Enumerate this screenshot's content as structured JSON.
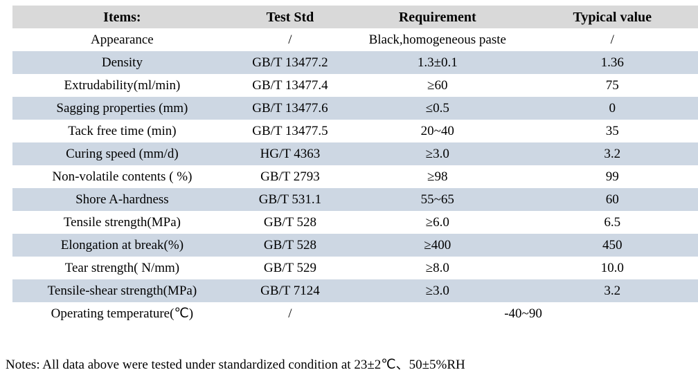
{
  "colors": {
    "header_bg": "#d9d9d9",
    "stripe_bg": "#cdd7e3",
    "row_bg": "#ffffff",
    "text": "#000000"
  },
  "table": {
    "headers": {
      "items": "Items:",
      "std": "Test Std",
      "req": "Requirement",
      "typical": "Typical value"
    },
    "rows": [
      {
        "item": "Appearance",
        "std": "/",
        "req": "Black,homogeneous paste",
        "typical": "/"
      },
      {
        "item": "Density",
        "std": "GB/T 13477.2",
        "req": "1.3±0.1",
        "typical": "1.36"
      },
      {
        "item": "Extrudability(ml/min)",
        "std": "GB/T 13477.4",
        "req": "≥60",
        "typical": "75"
      },
      {
        "item": "Sagging properties (mm)",
        "std": "GB/T 13477.6",
        "req": "≤0.5",
        "typical": "0"
      },
      {
        "item": "Tack free time (min)",
        "std": "GB/T 13477.5",
        "req": "20~40",
        "typical": "35"
      },
      {
        "item": "Curing speed (mm/d)",
        "std": "HG/T 4363",
        "req": "≥3.0",
        "typical": "3.2"
      },
      {
        "item": "Non-volatile contents ( %)",
        "std": "GB/T 2793",
        "req": "≥98",
        "typical": "99"
      },
      {
        "item": "Shore A-hardness",
        "std": "GB/T 531.1",
        "req": "55~65",
        "typical": "60"
      },
      {
        "item": "Tensile strength(MPa)",
        "std": "GB/T 528",
        "req": "≥6.0",
        "typical": "6.5"
      },
      {
        "item": "Elongation at break(%)",
        "std": "GB/T 528",
        "req": "≥400",
        "typical": "450"
      },
      {
        "item": "Tear strength( N/mm)",
        "std": "GB/T 529",
        "req": "≥8.0",
        "typical": "10.0"
      },
      {
        "item": "Tensile-shear strength(MPa)",
        "std": "GB/T 7124",
        "req": "≥3.0",
        "typical": "3.2"
      }
    ],
    "last_row": {
      "item": "Operating temperature(℃)",
      "std": "/",
      "range": "-40~90"
    }
  },
  "notes": "Notes: All data above were tested under standardized condition at 23±2℃、50±5%RH"
}
